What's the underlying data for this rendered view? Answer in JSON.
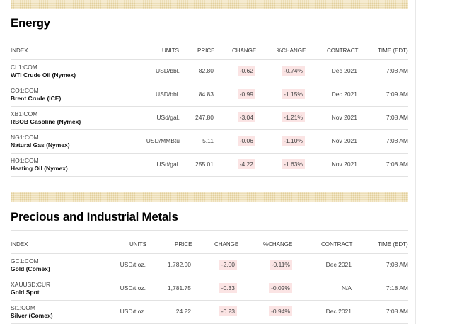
{
  "sections": [
    {
      "title": "Energy",
      "headers": [
        "INDEX",
        "UNITS",
        "PRICE",
        "CHANGE",
        "%CHANGE",
        "CONTRACT",
        "TIME (EDT)"
      ],
      "rows": [
        {
          "symbol": "CL1:COM",
          "name": "WTI Crude Oil (Nymex)",
          "units": "USD/bbl.",
          "price": "82.80",
          "change": "-0.62",
          "pct_change": "-0.74%",
          "contract": "Dec 2021",
          "time": "7:08 AM"
        },
        {
          "symbol": "CO1:COM",
          "name": "Brent Crude (ICE)",
          "units": "USD/bbl.",
          "price": "84.83",
          "change": "-0.99",
          "pct_change": "-1.15%",
          "contract": "Dec 2021",
          "time": "7:09 AM"
        },
        {
          "symbol": "XB1:COM",
          "name": "RBOB Gasoline (Nymex)",
          "units": "USd/gal.",
          "price": "247.80",
          "change": "-3.04",
          "pct_change": "-1.21%",
          "contract": "Nov 2021",
          "time": "7:08 AM"
        },
        {
          "symbol": "NG1:COM",
          "name": "Natural Gas (Nymex)",
          "units": "USD/MMBtu",
          "price": "5.11",
          "change": "-0.06",
          "pct_change": "-1.10%",
          "contract": "Nov 2021",
          "time": "7:08 AM"
        },
        {
          "symbol": "HO1:COM",
          "name": "Heating Oil (Nymex)",
          "units": "USd/gal.",
          "price": "255.01",
          "change": "-4.22",
          "pct_change": "-1.63%",
          "contract": "Nov 2021",
          "time": "7:08 AM"
        }
      ]
    },
    {
      "title": "Precious and Industrial Metals",
      "headers": [
        "INDEX",
        "UNITS",
        "PRICE",
        "CHANGE",
        "%CHANGE",
        "CONTRACT",
        "TIME (EDT)"
      ],
      "rows": [
        {
          "symbol": "GC1:COM",
          "name": "Gold (Comex)",
          "units": "USD/t oz.",
          "price": "1,782.90",
          "change": "-2.00",
          "pct_change": "-0.11%",
          "contract": "Dec 2021",
          "time": "7:08 AM"
        },
        {
          "symbol": "XAUUSD:CUR",
          "name": "Gold Spot",
          "units": "USD/t oz.",
          "price": "1,781.75",
          "change": "-0.33",
          "pct_change": "-0.02%",
          "contract": "N/A",
          "time": "7:18 AM"
        },
        {
          "symbol": "SI1:COM",
          "name": "Silver (Comex)",
          "units": "USD/t oz.",
          "price": "24.22",
          "change": "-0.23",
          "pct_change": "-0.94%",
          "contract": "Dec 2021",
          "time": "7:08 AM"
        }
      ]
    }
  ],
  "colors": {
    "negative_bg": "#fbe4e4",
    "band": "#f6ecd2"
  }
}
